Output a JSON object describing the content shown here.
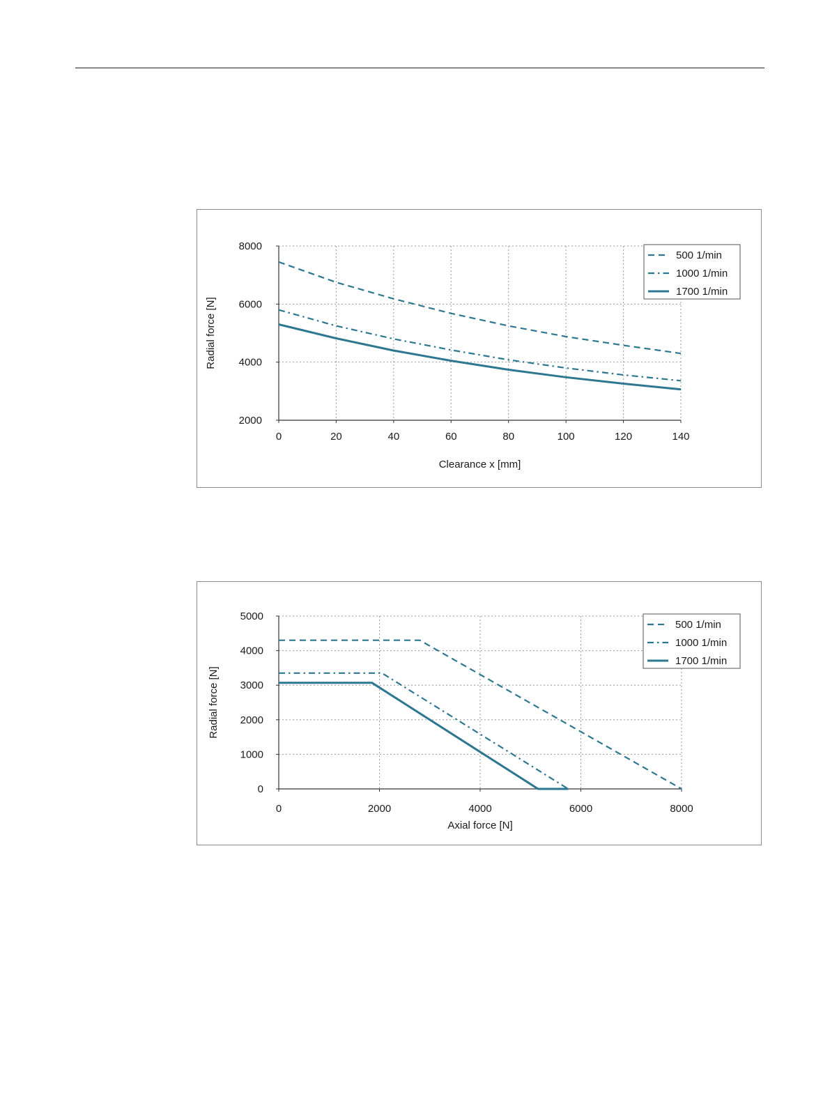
{
  "chart_data": [
    {
      "type": "line",
      "title": "",
      "xlabel": "Clearance x [mm]",
      "ylabel": "Radial force [N]",
      "xlim": [
        0,
        140
      ],
      "ylim": [
        2000,
        8000
      ],
      "xticks": [
        0,
        20,
        40,
        60,
        80,
        100,
        120,
        140
      ],
      "yticks": [
        2000,
        4000,
        6000,
        8000
      ],
      "grid": true,
      "legend_position": "top-right",
      "series": [
        {
          "name": "500  1/min",
          "style": "dashed",
          "x": [
            0,
            20,
            40,
            60,
            80,
            100,
            120,
            140
          ],
          "y": [
            7450,
            6750,
            6180,
            5680,
            5250,
            4880,
            4580,
            4300
          ]
        },
        {
          "name": "1000 1/min",
          "style": "dash-dot",
          "x": [
            0,
            20,
            40,
            60,
            80,
            100,
            120,
            140
          ],
          "y": [
            5800,
            5250,
            4800,
            4420,
            4080,
            3800,
            3560,
            3360
          ]
        },
        {
          "name": "1700 1/min",
          "style": "solid",
          "x": [
            0,
            20,
            40,
            60,
            80,
            100,
            120,
            140
          ],
          "y": [
            5300,
            4820,
            4400,
            4050,
            3740,
            3480,
            3260,
            3060
          ]
        }
      ]
    },
    {
      "type": "line",
      "title": "",
      "xlabel": "Axial force [N]",
      "ylabel": "Radial force [N]",
      "xlim": [
        0,
        8000
      ],
      "ylim": [
        0,
        5000
      ],
      "xticks": [
        0,
        2000,
        4000,
        6000,
        8000
      ],
      "yticks": [
        0,
        1000,
        2000,
        3000,
        4000,
        5000
      ],
      "grid": true,
      "legend_position": "top-right",
      "series": [
        {
          "name": "500  1/min",
          "style": "dashed",
          "x": [
            0,
            2800,
            8000
          ],
          "y": [
            4300,
            4300,
            0
          ]
        },
        {
          "name": "1000 1/min",
          "style": "dash-dot",
          "x": [
            0,
            2050,
            5750
          ],
          "y": [
            3350,
            3350,
            0
          ]
        },
        {
          "name": "1700 1/min",
          "style": "solid",
          "x": [
            0,
            1850,
            5150,
            5750
          ],
          "y": [
            3070,
            3070,
            0,
            0
          ]
        }
      ]
    }
  ],
  "colors": {
    "series": "#2e7790",
    "grid": "#9a9a9a",
    "axis": "#333333"
  }
}
